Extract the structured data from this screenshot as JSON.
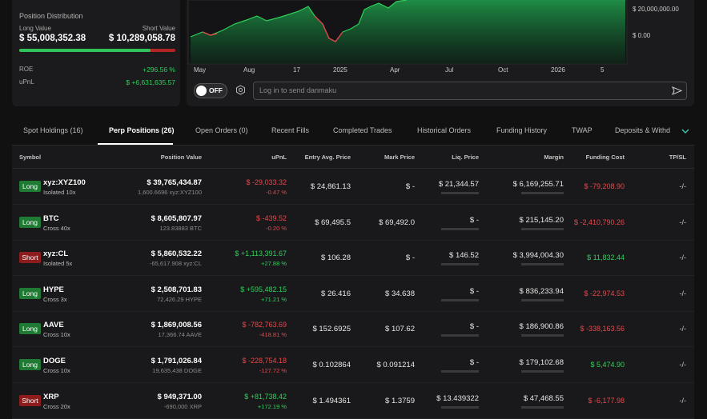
{
  "summary": {
    "title": "Position Distribution",
    "long_label": "Long Value",
    "short_label": "Short Value",
    "long_value": "$ 55,008,352.38",
    "short_value": "$ 10,289,058.78",
    "roe_label": "ROE",
    "roe": "+296.56 %",
    "upnl_label": "uPnL",
    "upnl": "$ +6,631,635.57"
  },
  "chart": {
    "x_labels": [
      "May",
      "Aug",
      "17",
      "2025",
      "Apr",
      "Jul",
      "Oct",
      "2026",
      "5"
    ],
    "y_labels": [
      "$ 20,000,000.00",
      "$ 0.00"
    ]
  },
  "danmaku": {
    "toggle": "OFF",
    "placeholder": "Log in to send danmaku"
  },
  "tabs": [
    "Spot Holdings (16)",
    "Perp Positions (26)",
    "Open Orders (0)",
    "Recent Fills",
    "Completed Trades",
    "Historical Orders",
    "Funding History",
    "TWAP",
    "Deposits & Withd"
  ],
  "active_tab": 1,
  "table": {
    "columns": [
      "Symbol",
      "Position Value",
      "uPnL",
      "Entry Avg. Price",
      "Mark Price",
      "Liq. Price",
      "Margin",
      "Funding Cost",
      "TP/SL"
    ],
    "rows": [
      {
        "side": "Long",
        "badge_color": "#1f7a33",
        "symbol": "xyz:XYZ100",
        "mode": "Isolated 10x",
        "position_value": "$ 39,765,434.87",
        "size": "1,600.6696 xyz:XYZ100",
        "upnl": "$ -29,033.32",
        "upnl_pct": "-0.47 %",
        "entry": "$ 24,861.13",
        "mark": "$ -",
        "liq": "$ 21,344.57",
        "margin": "$ 6,169,255.71",
        "funding": "$ -79,208.90",
        "tpsl": "-/-"
      },
      {
        "side": "Long",
        "badge_color": "#1f7a33",
        "symbol": "BTC",
        "mode": "Cross 40x",
        "position_value": "$ 8,605,807.97",
        "size": "123.83883 BTC",
        "upnl": "$ -439.52",
        "upnl_pct": "-0.20 %",
        "entry": "$ 69,495.5",
        "mark": "$ 69,492.0",
        "liq": "$ -",
        "margin": "$ 215,145.20",
        "funding": "$ -2,410,790.26",
        "tpsl": "-/-"
      },
      {
        "side": "Short",
        "badge_color": "#8e1c1c",
        "symbol": "xyz:CL",
        "mode": "Isolated 5x",
        "position_value": "$ 5,860,532.22",
        "size": "-65,617.908 xyz:CL",
        "upnl": "$ +1,113,391.67",
        "upnl_pct": "+27.88 %",
        "entry": "$ 106.28",
        "mark": "$ -",
        "liq": "$ 146.52",
        "margin": "$ 3,994,004.30",
        "funding": "$ 11,832.44",
        "tpsl": "-/-"
      },
      {
        "side": "Long",
        "badge_color": "#1f7a33",
        "symbol": "HYPE",
        "mode": "Cross 3x",
        "position_value": "$ 2,508,701.83",
        "size": "72,426.29 HYPE",
        "upnl": "$ +595,482.15",
        "upnl_pct": "+71.21 %",
        "entry": "$ 26.416",
        "mark": "$ 34.638",
        "liq": "$ -",
        "margin": "$ 836,233.94",
        "funding": "$ -22,974.53",
        "tpsl": "-/-"
      },
      {
        "side": "Long",
        "badge_color": "#1f7a33",
        "symbol": "AAVE",
        "mode": "Cross 10x",
        "position_value": "$ 1,869,008.56",
        "size": "17,366.74 AAVE",
        "upnl": "$ -782,763.69",
        "upnl_pct": "-418.81 %",
        "entry": "$ 152.6925",
        "mark": "$ 107.62",
        "liq": "$ -",
        "margin": "$ 186,900.86",
        "funding": "$ -338,163.56",
        "tpsl": "-/-"
      },
      {
        "side": "Long",
        "badge_color": "#1f7a33",
        "symbol": "DOGE",
        "mode": "Cross 10x",
        "position_value": "$ 1,791,026.84",
        "size": "19,635,438 DOGE",
        "upnl": "$ -228,754.18",
        "upnl_pct": "-127.72 %",
        "entry": "$ 0.102864",
        "mark": "$ 0.091214",
        "liq": "$ -",
        "margin": "$ 179,102.68",
        "funding": "$ 5,474.90",
        "tpsl": "-/-"
      },
      {
        "side": "Short",
        "badge_color": "#8e1c1c",
        "symbol": "XRP",
        "mode": "Cross 20x",
        "position_value": "$ 949,371.00",
        "size": "-690,000 XRP",
        "upnl": "$ +81,738.42",
        "upnl_pct": "+172.19 %",
        "entry": "$ 1.494361",
        "mark": "$ 1.3759",
        "liq": "$ 13.439322",
        "margin": "$ 47,468.55",
        "funding": "$ -6,177.98",
        "tpsl": "-/-"
      }
    ]
  }
}
